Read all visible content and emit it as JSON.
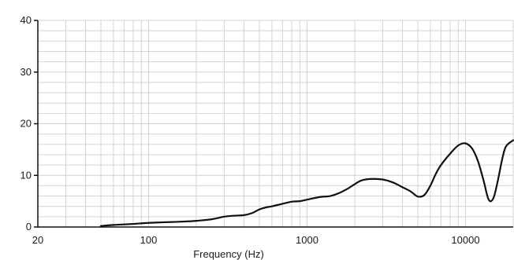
{
  "chart_data": {
    "type": "line",
    "title": "",
    "xlabel": "Frequency (Hz)",
    "ylabel": "",
    "x_scale": "log",
    "xlim": [
      20,
      20000
    ],
    "ylim": [
      0,
      40
    ],
    "grid": true,
    "legend": "none",
    "x_tick_labels": [
      "20",
      "100",
      "1000",
      "10000"
    ],
    "x_tick_values": [
      20,
      100,
      1000,
      10000
    ],
    "y_tick_labels": [
      "0",
      "10",
      "20",
      "30",
      "40"
    ],
    "y_tick_values": [
      0,
      10,
      20,
      30,
      40
    ],
    "series": [
      {
        "color": "#111111",
        "points": [
          [
            50,
            0.2
          ],
          [
            60,
            0.4
          ],
          [
            70,
            0.5
          ],
          [
            80,
            0.6
          ],
          [
            100,
            0.8
          ],
          [
            120,
            0.9
          ],
          [
            150,
            1.0
          ],
          [
            180,
            1.1
          ],
          [
            200,
            1.2
          ],
          [
            250,
            1.5
          ],
          [
            300,
            2.0
          ],
          [
            350,
            2.2
          ],
          [
            400,
            2.3
          ],
          [
            450,
            2.7
          ],
          [
            500,
            3.4
          ],
          [
            550,
            3.8
          ],
          [
            600,
            4.0
          ],
          [
            700,
            4.5
          ],
          [
            800,
            4.9
          ],
          [
            900,
            5.0
          ],
          [
            1000,
            5.3
          ],
          [
            1200,
            5.8
          ],
          [
            1400,
            6.0
          ],
          [
            1600,
            6.6
          ],
          [
            1800,
            7.4
          ],
          [
            2000,
            8.3
          ],
          [
            2200,
            9.0
          ],
          [
            2500,
            9.3
          ],
          [
            3000,
            9.2
          ],
          [
            3500,
            8.6
          ],
          [
            4000,
            7.7
          ],
          [
            4500,
            6.9
          ],
          [
            5000,
            5.9
          ],
          [
            5500,
            6.2
          ],
          [
            6000,
            8.0
          ],
          [
            6500,
            10.3
          ],
          [
            7000,
            12.0
          ],
          [
            8000,
            14.2
          ],
          [
            9000,
            15.8
          ],
          [
            10000,
            16.2
          ],
          [
            11000,
            15.2
          ],
          [
            12000,
            12.7
          ],
          [
            13000,
            9.0
          ],
          [
            14000,
            5.3
          ],
          [
            15000,
            5.6
          ],
          [
            16000,
            9.0
          ],
          [
            17000,
            13.0
          ],
          [
            18000,
            15.6
          ],
          [
            20000,
            16.8
          ]
        ]
      }
    ]
  }
}
